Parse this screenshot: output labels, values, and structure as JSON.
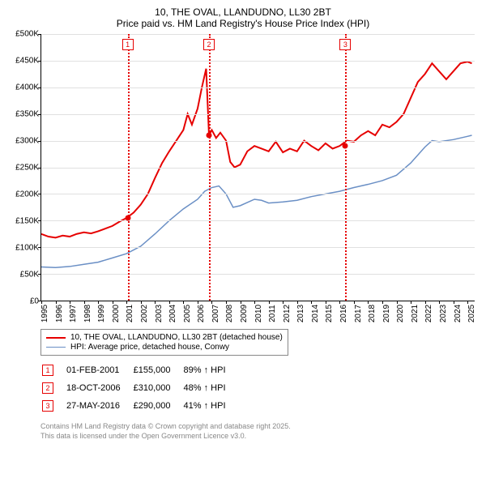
{
  "title_line1": "10, THE OVAL, LLANDUDNO, LL30 2BT",
  "title_line2": "Price paid vs. HM Land Registry's House Price Index (HPI)",
  "chart": {
    "type": "line",
    "ylim": [
      0,
      500000
    ],
    "ytick_step": 50000,
    "yticks": [
      "£0",
      "£50K",
      "£100K",
      "£150K",
      "£200K",
      "£250K",
      "£300K",
      "£350K",
      "£400K",
      "£450K",
      "£500K"
    ],
    "xlim": [
      1995,
      2025.5
    ],
    "xticks": [
      "1995",
      "1996",
      "1997",
      "1998",
      "1999",
      "2000",
      "2001",
      "2002",
      "2003",
      "2004",
      "2005",
      "2006",
      "2007",
      "2008",
      "2009",
      "2010",
      "2011",
      "2012",
      "2013",
      "2014",
      "2015",
      "2016",
      "2017",
      "2018",
      "2019",
      "2020",
      "2021",
      "2022",
      "2023",
      "2024",
      "2025"
    ],
    "background_color": "#ffffff",
    "grid_color": "#e0e0e0",
    "series": [
      {
        "name": "price_paid",
        "label": "10, THE OVAL, LLANDUDNO, LL30 2BT (detached house)",
        "color": "#e60000",
        "line_width": 2,
        "points": [
          [
            1995,
            125000
          ],
          [
            1995.5,
            120000
          ],
          [
            1996,
            118000
          ],
          [
            1996.5,
            122000
          ],
          [
            1997,
            120000
          ],
          [
            1997.5,
            125000
          ],
          [
            1998,
            128000
          ],
          [
            1998.5,
            126000
          ],
          [
            1999,
            130000
          ],
          [
            1999.5,
            135000
          ],
          [
            2000,
            140000
          ],
          [
            2000.5,
            148000
          ],
          [
            2001,
            155000
          ],
          [
            2001.5,
            165000
          ],
          [
            2002,
            180000
          ],
          [
            2002.5,
            200000
          ],
          [
            2003,
            230000
          ],
          [
            2003.5,
            258000
          ],
          [
            2004,
            280000
          ],
          [
            2004.5,
            300000
          ],
          [
            2005,
            320000
          ],
          [
            2005.3,
            350000
          ],
          [
            2005.6,
            330000
          ],
          [
            2006,
            360000
          ],
          [
            2006.3,
            400000
          ],
          [
            2006.6,
            435000
          ],
          [
            2006.8,
            310000
          ],
          [
            2007,
            320000
          ],
          [
            2007.3,
            305000
          ],
          [
            2007.6,
            315000
          ],
          [
            2008,
            300000
          ],
          [
            2008.3,
            260000
          ],
          [
            2008.6,
            250000
          ],
          [
            2009,
            255000
          ],
          [
            2009.5,
            280000
          ],
          [
            2010,
            290000
          ],
          [
            2010.5,
            285000
          ],
          [
            2011,
            280000
          ],
          [
            2011.5,
            298000
          ],
          [
            2012,
            278000
          ],
          [
            2012.5,
            285000
          ],
          [
            2013,
            280000
          ],
          [
            2013.5,
            300000
          ],
          [
            2014,
            290000
          ],
          [
            2014.5,
            282000
          ],
          [
            2015,
            295000
          ],
          [
            2015.5,
            285000
          ],
          [
            2016,
            290000
          ],
          [
            2016.5,
            300000
          ],
          [
            2017,
            298000
          ],
          [
            2017.5,
            310000
          ],
          [
            2018,
            318000
          ],
          [
            2018.5,
            310000
          ],
          [
            2019,
            330000
          ],
          [
            2019.5,
            325000
          ],
          [
            2020,
            335000
          ],
          [
            2020.5,
            350000
          ],
          [
            2021,
            380000
          ],
          [
            2021.5,
            410000
          ],
          [
            2022,
            425000
          ],
          [
            2022.5,
            445000
          ],
          [
            2023,
            430000
          ],
          [
            2023.5,
            415000
          ],
          [
            2024,
            430000
          ],
          [
            2024.5,
            445000
          ],
          [
            2025,
            448000
          ],
          [
            2025.3,
            445000
          ]
        ]
      },
      {
        "name": "hpi",
        "label": "HPI: Average price, detached house, Conwy",
        "color": "#6a8fc5",
        "line_width": 1.5,
        "points": [
          [
            1995,
            63000
          ],
          [
            1996,
            62000
          ],
          [
            1997,
            64000
          ],
          [
            1998,
            68000
          ],
          [
            1999,
            72000
          ],
          [
            2000,
            80000
          ],
          [
            2001,
            88000
          ],
          [
            2002,
            102000
          ],
          [
            2003,
            125000
          ],
          [
            2004,
            150000
          ],
          [
            2005,
            172000
          ],
          [
            2006,
            190000
          ],
          [
            2006.5,
            205000
          ],
          [
            2007,
            212000
          ],
          [
            2007.5,
            215000
          ],
          [
            2008,
            200000
          ],
          [
            2008.5,
            175000
          ],
          [
            2009,
            178000
          ],
          [
            2010,
            190000
          ],
          [
            2010.5,
            188000
          ],
          [
            2011,
            183000
          ],
          [
            2012,
            185000
          ],
          [
            2013,
            188000
          ],
          [
            2014,
            195000
          ],
          [
            2015,
            200000
          ],
          [
            2016,
            205000
          ],
          [
            2017,
            212000
          ],
          [
            2018,
            218000
          ],
          [
            2019,
            225000
          ],
          [
            2020,
            235000
          ],
          [
            2021,
            258000
          ],
          [
            2022,
            288000
          ],
          [
            2022.5,
            300000
          ],
          [
            2023,
            298000
          ],
          [
            2024,
            302000
          ],
          [
            2025,
            308000
          ],
          [
            2025.3,
            310000
          ]
        ]
      }
    ],
    "markers": [
      {
        "id": "1",
        "x": 2001.08,
        "date": "01-FEB-2001",
        "price": "£155,000",
        "delta": "89% ↑ HPI",
        "color": "#e60000",
        "dot_y": 155000
      },
      {
        "id": "2",
        "x": 2006.8,
        "date": "18-OCT-2006",
        "price": "£310,000",
        "delta": "48% ↑ HPI",
        "color": "#e60000",
        "dot_y": 310000
      },
      {
        "id": "3",
        "x": 2016.4,
        "date": "27-MAY-2016",
        "price": "£290,000",
        "delta": "41% ↑ HPI",
        "color": "#e60000",
        "dot_y": 290000
      }
    ]
  },
  "copyright_line1": "Contains HM Land Registry data © Crown copyright and database right 2025.",
  "copyright_line2": "This data is licensed under the Open Government Licence v3.0."
}
